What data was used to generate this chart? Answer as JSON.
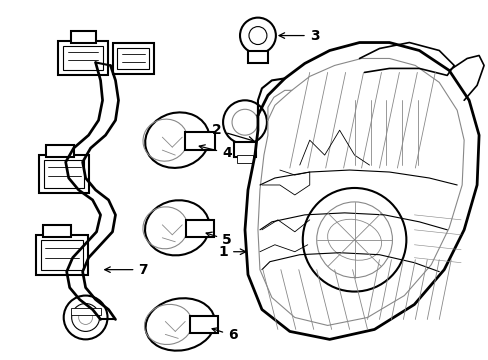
{
  "background_color": "#ffffff",
  "line_color": "#000000",
  "gray_color": "#888888",
  "lw_main": 1.5,
  "lw_inner": 0.8,
  "lw_detail": 0.6,
  "figsize": [
    4.89,
    3.6
  ],
  "dpi": 100,
  "label_fontsize": 9,
  "label_color": "#000000"
}
